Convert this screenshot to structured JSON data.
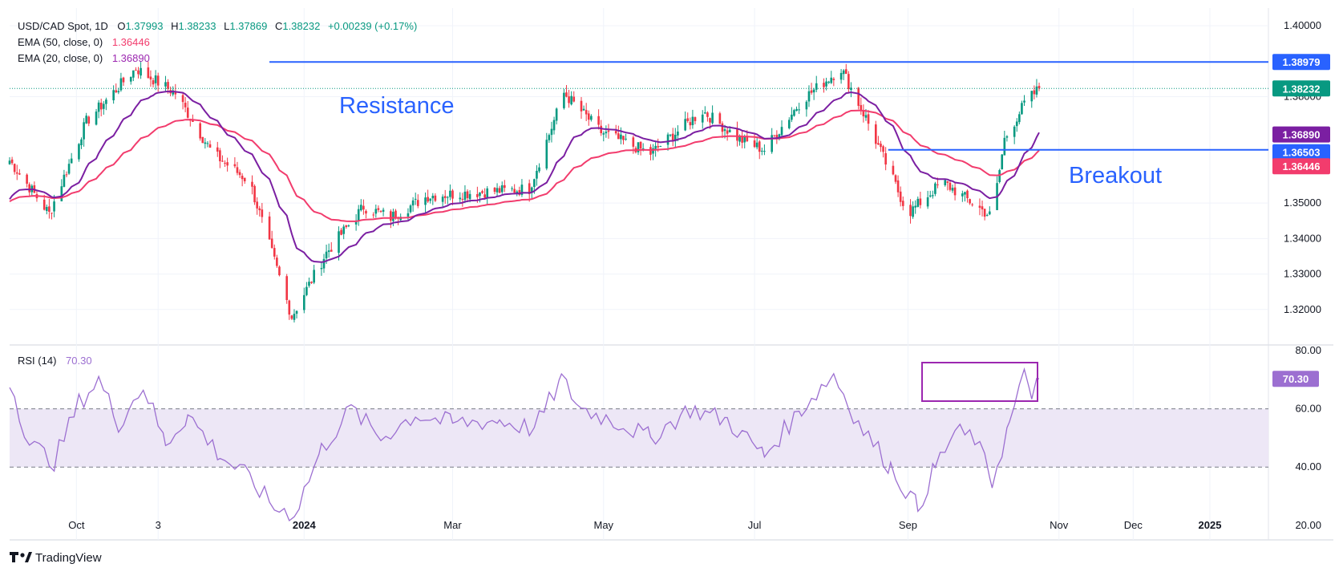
{
  "header": {
    "symbol": "USD/CAD Spot, 1D",
    "o_label": "O",
    "o_value": "1.37993",
    "h_label": "H",
    "h_value": "1.38233",
    "l_label": "L",
    "l_value": "1.37869",
    "c_label": "C",
    "c_value": "1.38232",
    "change": "+0.00239 (+0.17%)",
    "ema50_label": "EMA (50, close, 0)",
    "ema50_value": "1.36446",
    "ema20_label": "EMA (20, close, 0)",
    "ema20_value": "1.36890"
  },
  "rsi_header": {
    "label": "RSI (14)",
    "value": "70.30"
  },
  "annotations": {
    "resistance": "Resistance",
    "breakout": "Breakout"
  },
  "branding": {
    "logo": "TradingView"
  },
  "colors": {
    "up": "#089981",
    "down": "#f23645",
    "ema20": "#7b1fa2",
    "ema50": "#f23c6d",
    "hline": "#2962ff",
    "rsi": "#9c6fd1",
    "rsi_band": "#ede7f6",
    "last": "#089981"
  },
  "chart_data": [
    {
      "type": "candlestick",
      "title": "USD/CAD Spot, 1D",
      "ylim": [
        1.31,
        1.405
      ],
      "y_ticks": [
        "1.40000",
        "1.38000",
        "1.35000",
        "1.34000",
        "1.33000",
        "1.32000"
      ],
      "y_tick_values": [
        1.4,
        1.38,
        1.35,
        1.34,
        1.33,
        1.32
      ],
      "x_ticks": [
        "Oct",
        "3",
        "2024",
        "Mar",
        "May",
        "Jul",
        "Sep",
        "Nov",
        "Dec",
        "2025"
      ],
      "x_range": [
        "2023-09-04",
        "2025-01-24"
      ],
      "x_tick_dates": [
        "2023-10-01",
        "2023-11-03",
        "2024-01-01",
        "2024-03-01",
        "2024-05-01",
        "2024-07-01",
        "2024-09-01",
        "2024-11-01",
        "2024-12-01",
        "2025-01-01"
      ],
      "price_path": [
        [
          "2023-09-04",
          1.362
        ],
        [
          "2023-09-20",
          1.347
        ],
        [
          "2023-10-05",
          1.373
        ],
        [
          "2023-10-25",
          1.388
        ],
        [
          "2023-11-10",
          1.381
        ],
        [
          "2023-11-25",
          1.364
        ],
        [
          "2023-12-10",
          1.356
        ],
        [
          "2023-12-27",
          1.318
        ],
        [
          "2024-01-10",
          1.336
        ],
        [
          "2024-01-25",
          1.349
        ],
        [
          "2024-02-05",
          1.346
        ],
        [
          "2024-02-20",
          1.352
        ],
        [
          "2024-03-10",
          1.353
        ],
        [
          "2024-04-01",
          1.354
        ],
        [
          "2024-04-15",
          1.381
        ],
        [
          "2024-04-30",
          1.37
        ],
        [
          "2024-05-20",
          1.364
        ],
        [
          "2024-06-10",
          1.376
        ],
        [
          "2024-06-25",
          1.368
        ],
        [
          "2024-07-05",
          1.365
        ],
        [
          "2024-07-20",
          1.379
        ],
        [
          "2024-08-05",
          1.388
        ],
        [
          "2024-08-15",
          1.374
        ],
        [
          "2024-09-01",
          1.347
        ],
        [
          "2024-09-15",
          1.356
        ],
        [
          "2024-09-25",
          1.351
        ],
        [
          "2024-10-05",
          1.346
        ],
        [
          "2024-10-10",
          1.368
        ],
        [
          "2024-10-18",
          1.378
        ],
        [
          "2024-10-24",
          1.38232
        ]
      ],
      "horizontal_lines": [
        {
          "value": 1.38979,
          "label": "1.38979"
        },
        {
          "value": 1.36503,
          "label": "1.36503"
        }
      ],
      "price_labels": [
        {
          "value": 1.38232,
          "label": "1.38232",
          "color": "#089981"
        },
        {
          "value": 1.3689,
          "label": "1.36890",
          "color": "#7b1fa2"
        },
        {
          "value": 1.36446,
          "label": "1.36446",
          "color": "#f23c6d"
        }
      ],
      "series": [
        {
          "name": "EMA (50, close, 0)",
          "last": 1.36446
        },
        {
          "name": "EMA (20, close, 0)",
          "last": 1.3689
        }
      ]
    },
    {
      "type": "line",
      "title": "RSI (14)",
      "ylim": [
        15,
        80
      ],
      "y_ticks": [
        "80.00",
        "60.00",
        "40.00",
        "20.00"
      ],
      "y_tick_values": [
        80,
        60,
        40,
        20
      ],
      "band": [
        40,
        60
      ],
      "last": {
        "value": 70.3,
        "label": "70.30"
      },
      "x_range": [
        "2023-09-04",
        "2025-01-24"
      ],
      "series": [
        {
          "values": [
            [
              "2023-09-04",
              70
            ],
            [
              "2023-09-12",
              48
            ],
            [
              "2023-09-22",
              42
            ],
            [
              "2023-10-02",
              62
            ],
            [
              "2023-10-10",
              70
            ],
            [
              "2023-10-18",
              55
            ],
            [
              "2023-10-28",
              68
            ],
            [
              "2023-11-06",
              48
            ],
            [
              "2023-11-15",
              58
            ],
            [
              "2023-11-28",
              44
            ],
            [
              "2023-12-10",
              36
            ],
            [
              "2023-12-20",
              26
            ],
            [
              "2023-12-28",
              24
            ],
            [
              "2024-01-08",
              46
            ],
            [
              "2024-01-20",
              60
            ],
            [
              "2024-02-01",
              50
            ],
            [
              "2024-02-15",
              58
            ],
            [
              "2024-03-01",
              55
            ],
            [
              "2024-03-20",
              56
            ],
            [
              "2024-04-03",
              53
            ],
            [
              "2024-04-14",
              70
            ],
            [
              "2024-04-22",
              60
            ],
            [
              "2024-05-05",
              56
            ],
            [
              "2024-05-20",
              50
            ],
            [
              "2024-06-05",
              60
            ],
            [
              "2024-06-20",
              56
            ],
            [
              "2024-07-05",
              44
            ],
            [
              "2024-07-20",
              60
            ],
            [
              "2024-08-02",
              72
            ],
            [
              "2024-08-12",
              55
            ],
            [
              "2024-08-25",
              40
            ],
            [
              "2024-09-05",
              26
            ],
            [
              "2024-09-12",
              40
            ],
            [
              "2024-09-20",
              52
            ],
            [
              "2024-09-28",
              50
            ],
            [
              "2024-10-05",
              35
            ],
            [
              "2024-10-12",
              55
            ],
            [
              "2024-10-18",
              71
            ],
            [
              "2024-10-21",
              66
            ],
            [
              "2024-10-24",
              70.3
            ]
          ]
        }
      ]
    }
  ]
}
